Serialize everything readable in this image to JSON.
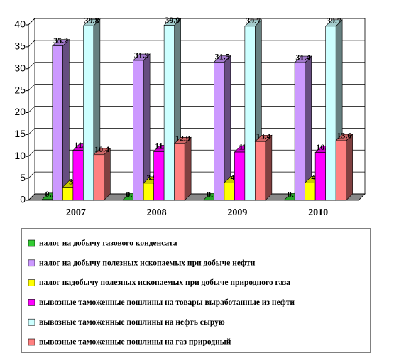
{
  "chart_data": {
    "type": "bar3d",
    "categories": [
      "2007",
      "2008",
      "2009",
      "2010"
    ],
    "series": [
      {
        "name": "налог на добычу газового конденсата",
        "color": "#33cc33",
        "values": [
          0.2,
          0.1,
          0.1,
          0.1
        ]
      },
      {
        "name": "налог на добычу полезных ископаемых при добыче нефти",
        "color": "#cc99ff",
        "values": [
          35.2,
          31.9,
          31.5,
          31.4
        ]
      },
      {
        "name": "налог надобычу полезных ископаемых при добыче природного газа",
        "color": "#ffff00",
        "values": [
          3,
          3.9,
          4,
          4
        ]
      },
      {
        "name": "вывозные таможенные пошлины на товары выработанные из нефти",
        "color": "#ff00ff",
        "values": [
          11.4,
          11.1,
          11,
          10.9
        ]
      },
      {
        "name": "вывозные таможенные пошлины на нефть сырую",
        "color": "#ccffff",
        "values": [
          39.8,
          39.9,
          39.7,
          39.7
        ]
      },
      {
        "name": "вывозные таможенные пошлины на газ природный",
        "color": "#ff8080",
        "values": [
          10.4,
          12.9,
          13.4,
          13.6
        ]
      }
    ],
    "ylim": [
      0,
      40
    ],
    "yticks": [
      0,
      5,
      10,
      15,
      20,
      25,
      30,
      35,
      40
    ],
    "grid": true
  }
}
